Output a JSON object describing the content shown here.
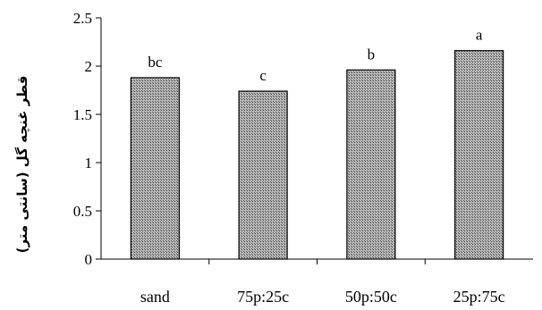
{
  "chart_data": {
    "type": "bar",
    "title": "",
    "xlabel": "",
    "ylabel": "قطر غنچه گل (سانتی متر)",
    "categories": [
      "sand",
      "75p:25c",
      "50p:50c",
      "25p:75c"
    ],
    "values": [
      1.88,
      1.74,
      1.96,
      2.16
    ],
    "significance_letters": [
      "bc",
      "c",
      "b",
      "a"
    ],
    "ylim": [
      0,
      2.5
    ],
    "yticks": [
      0,
      0.5,
      1,
      1.5,
      2,
      2.5
    ],
    "ytick_labels": [
      "0",
      "0.5",
      "1",
      "1.5",
      "2",
      "2.5"
    ],
    "grid": false,
    "bar_fill": "#8c8c8c",
    "bar_stroke": "#000000"
  }
}
